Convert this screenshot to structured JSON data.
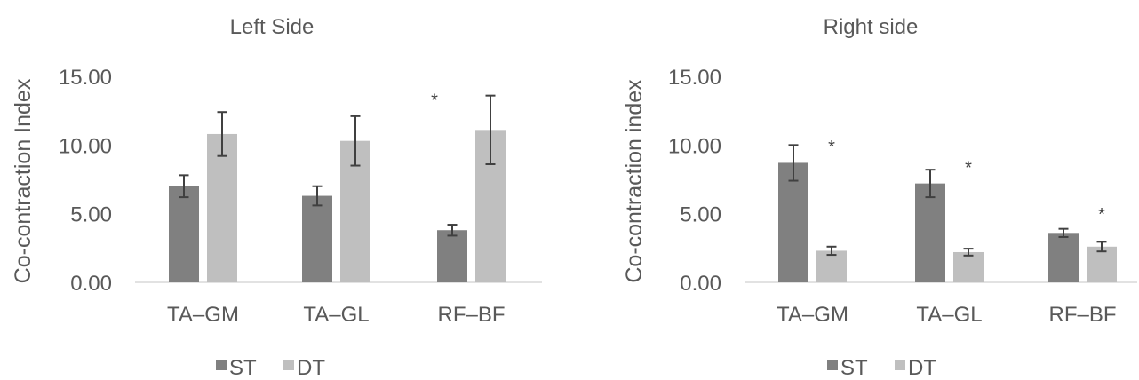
{
  "chart_data": [
    {
      "type": "bar",
      "title": "Left Side",
      "ylabel": "Co-contraction Index",
      "xlabel": "",
      "ylim": [
        0,
        15
      ],
      "yticks": [
        "0.00",
        "5.00",
        "10.00",
        "15.00"
      ],
      "categories": [
        "TA–GM",
        "TA–GL",
        "RF–BF"
      ],
      "series": [
        {
          "name": "ST",
          "color": "#808080",
          "values": [
            7.0,
            6.3,
            3.8
          ],
          "errors": [
            0.8,
            0.7,
            0.4
          ]
        },
        {
          "name": "DT",
          "color": "#bfbfbf",
          "values": [
            10.8,
            10.3,
            11.1
          ],
          "errors": [
            1.6,
            1.8,
            2.5
          ]
        }
      ],
      "annotations": [
        {
          "text": "*",
          "category": "RF–BF",
          "y": 13.6
        }
      ],
      "legend": "bottom",
      "grid": false
    },
    {
      "type": "bar",
      "title": "Right side",
      "ylabel": "Co-contraction index",
      "xlabel": "",
      "ylim": [
        0,
        15
      ],
      "yticks": [
        "0.00",
        "5.00",
        "10.00",
        "15.00"
      ],
      "categories": [
        "TA–GM",
        "TA–GL",
        "RF–BF"
      ],
      "series": [
        {
          "name": "ST",
          "color": "#808080",
          "values": [
            8.7,
            7.2,
            3.6
          ],
          "errors": [
            1.3,
            1.0,
            0.3
          ]
        },
        {
          "name": "DT",
          "color": "#bfbfbf",
          "values": [
            2.3,
            2.2,
            2.6
          ],
          "errors": [
            0.3,
            0.25,
            0.35
          ]
        }
      ],
      "annotations": [
        {
          "text": "*",
          "category": "TA–GM",
          "y": 10.2
        },
        {
          "text": "*",
          "category": "TA–GL",
          "y": 8.7
        },
        {
          "text": "*",
          "category": "RF–BF",
          "y": 5.3
        }
      ],
      "legend": "bottom",
      "grid": false
    }
  ]
}
